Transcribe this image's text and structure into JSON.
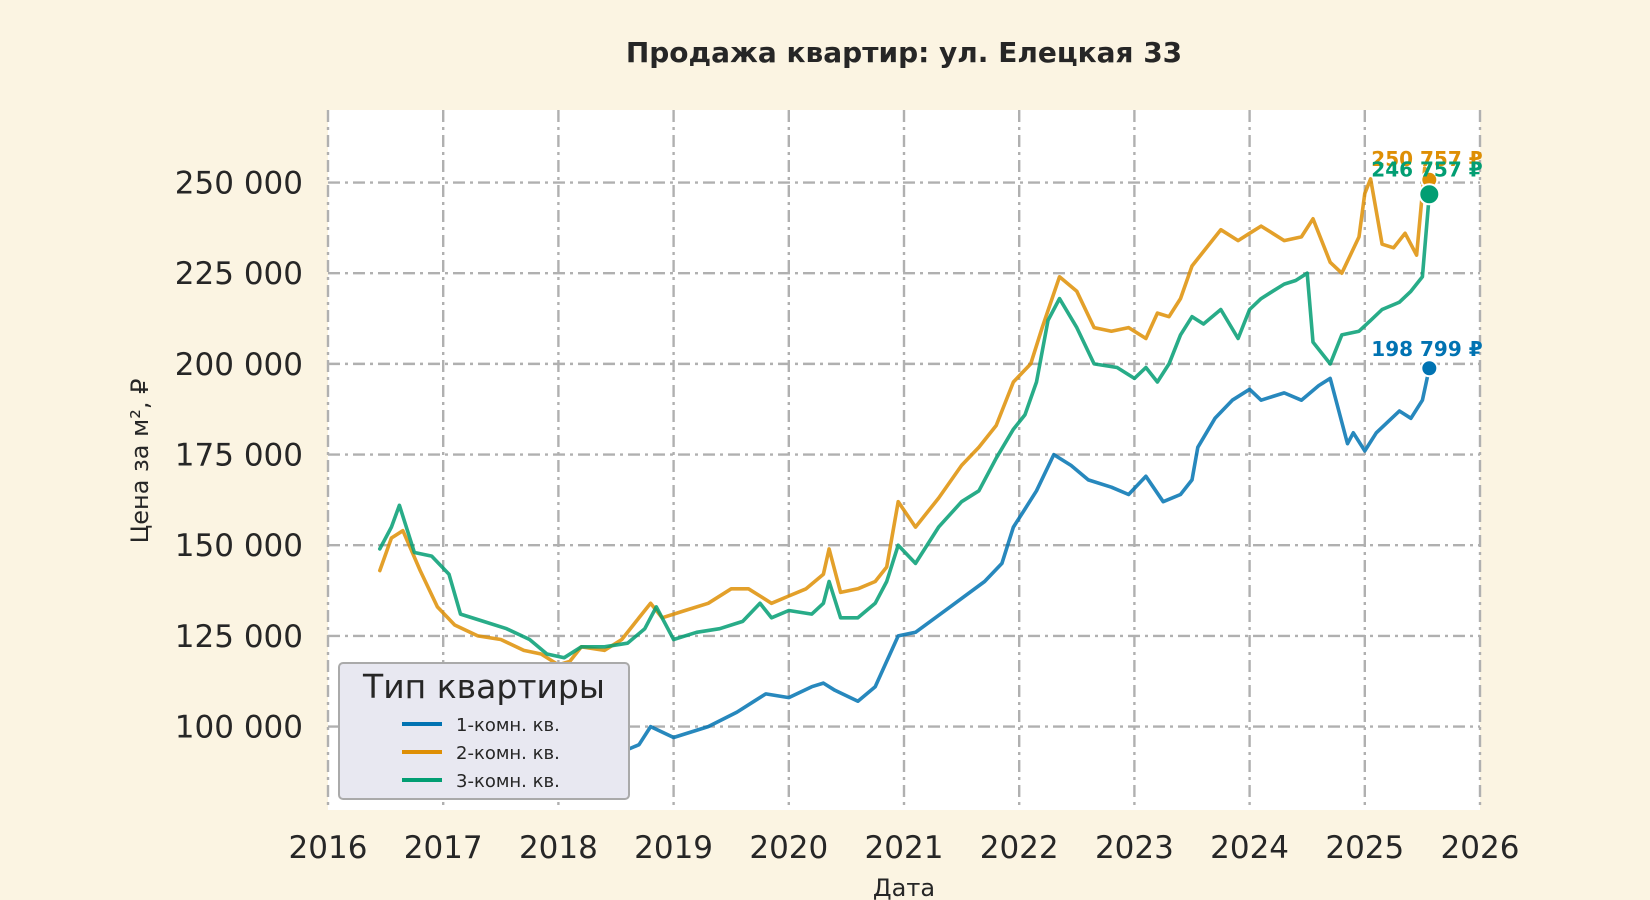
{
  "chart_data": {
    "type": "line",
    "title": "Продажа квартир: ул. Елецкая 33",
    "xlabel": "Дата",
    "ylabel": "Цена за м², ₽",
    "xlim": [
      2016.0,
      2026.0
    ],
    "ylim": [
      77000,
      270000
    ],
    "x_ticks": [
      "2016",
      "2017",
      "2018",
      "2019",
      "2020",
      "2021",
      "2022",
      "2023",
      "2024",
      "2025",
      "2026"
    ],
    "y_ticks": [
      "100 000",
      "125 000",
      "150 000",
      "175 000",
      "200 000",
      "225 000",
      "250 000"
    ],
    "y_tick_values": [
      100000,
      125000,
      150000,
      175000,
      200000,
      225000,
      250000
    ],
    "grid": true,
    "legend": {
      "title": "Тип квартиры",
      "position": "lower-left"
    },
    "series": [
      {
        "name": "1-комн. кв.",
        "color": "#0173b2",
        "x": [
          2016.7,
          2016.9,
          2017.1,
          2017.3,
          2017.6,
          2017.9,
          2018.05,
          2018.3,
          2018.55,
          2018.7,
          2018.8,
          2019.0,
          2019.3,
          2019.55,
          2019.7,
          2019.8,
          2020.0,
          2020.2,
          2020.3,
          2020.4,
          2020.6,
          2020.75,
          2020.85,
          2020.95,
          2021.1,
          2021.4,
          2021.7,
          2021.85,
          2021.95,
          2022.05,
          2022.15,
          2022.3,
          2022.45,
          2022.6,
          2022.8,
          2022.95,
          2023.1,
          2023.25,
          2023.4,
          2023.5,
          2023.55,
          2023.7,
          2023.85,
          2024.0,
          2024.1,
          2024.2,
          2024.3,
          2024.45,
          2024.6,
          2024.7,
          2024.85,
          2024.9,
          2025.0,
          2025.1,
          2025.2,
          2025.3,
          2025.4,
          2025.5,
          2025.56
        ],
        "y": [
          100000,
          98000,
          96000,
          94000,
          93000,
          90000,
          88000,
          90000,
          93000,
          95000,
          100000,
          97000,
          100000,
          104000,
          107000,
          109000,
          108000,
          111000,
          112000,
          110000,
          107000,
          111000,
          118000,
          125000,
          126000,
          133000,
          140000,
          145000,
          155000,
          160000,
          165000,
          175000,
          172000,
          168000,
          166000,
          164000,
          169000,
          162000,
          164000,
          168000,
          177000,
          185000,
          190000,
          193000,
          190000,
          191000,
          192000,
          190000,
          194000,
          196000,
          178000,
          181000,
          176000,
          181000,
          184000,
          187000,
          185000,
          190000,
          198799
        ]
      },
      {
        "name": "2-комн. кв.",
        "color": "#de8f05",
        "x": [
          2016.45,
          2016.55,
          2016.65,
          2016.8,
          2016.95,
          2017.1,
          2017.3,
          2017.5,
          2017.7,
          2017.85,
          2018.0,
          2018.1,
          2018.2,
          2018.4,
          2018.55,
          2018.7,
          2018.8,
          2018.9,
          2019.1,
          2019.3,
          2019.5,
          2019.65,
          2019.75,
          2019.85,
          2020.0,
          2020.15,
          2020.3,
          2020.35,
          2020.45,
          2020.6,
          2020.75,
          2020.85,
          2020.95,
          2021.1,
          2021.3,
          2021.5,
          2021.65,
          2021.8,
          2021.95,
          2022.1,
          2022.2,
          2022.35,
          2022.5,
          2022.65,
          2022.8,
          2022.95,
          2023.1,
          2023.2,
          2023.3,
          2023.4,
          2023.5,
          2023.6,
          2023.75,
          2023.9,
          2024.0,
          2024.1,
          2024.2,
          2024.3,
          2024.45,
          2024.55,
          2024.7,
          2024.8,
          2024.95,
          2025.0,
          2025.05,
          2025.15,
          2025.25,
          2025.35,
          2025.45,
          2025.52,
          2025.56
        ],
        "y": [
          143000,
          152000,
          154000,
          143000,
          133000,
          128000,
          125000,
          124000,
          121000,
          120000,
          117000,
          118000,
          122000,
          121000,
          124000,
          130000,
          134000,
          130000,
          132000,
          134000,
          138000,
          138000,
          136000,
          134000,
          136000,
          138000,
          142000,
          149000,
          137000,
          138000,
          140000,
          144000,
          162000,
          155000,
          163000,
          172000,
          177000,
          183000,
          195000,
          200000,
          210000,
          224000,
          220000,
          210000,
          209000,
          210000,
          207000,
          214000,
          213000,
          218000,
          227000,
          231000,
          237000,
          234000,
          236000,
          238000,
          236000,
          234000,
          235000,
          240000,
          228000,
          225000,
          235000,
          247000,
          251000,
          233000,
          232000,
          236000,
          230000,
          254000,
          250757
        ]
      },
      {
        "name": "3-комн. кв.",
        "color": "#029e73",
        "x": [
          2016.45,
          2016.55,
          2016.62,
          2016.75,
          2016.9,
          2017.05,
          2017.15,
          2017.35,
          2017.55,
          2017.75,
          2017.9,
          2018.05,
          2018.2,
          2018.4,
          2018.6,
          2018.75,
          2018.85,
          2019.0,
          2019.2,
          2019.4,
          2019.6,
          2019.75,
          2019.85,
          2020.0,
          2020.2,
          2020.3,
          2020.35,
          2020.45,
          2020.6,
          2020.75,
          2020.85,
          2020.95,
          2021.1,
          2021.3,
          2021.5,
          2021.65,
          2021.8,
          2021.95,
          2022.05,
          2022.15,
          2022.25,
          2022.35,
          2022.5,
          2022.65,
          2022.85,
          2023.0,
          2023.1,
          2023.2,
          2023.3,
          2023.4,
          2023.5,
          2023.6,
          2023.75,
          2023.9,
          2024.0,
          2024.1,
          2024.2,
          2024.3,
          2024.4,
          2024.5,
          2024.55,
          2024.7,
          2024.8,
          2024.95,
          2025.05,
          2025.15,
          2025.3,
          2025.4,
          2025.5,
          2025.56
        ],
        "y": [
          149000,
          155000,
          161000,
          148000,
          147000,
          142000,
          131000,
          129000,
          127000,
          124000,
          120000,
          119000,
          122000,
          122000,
          123000,
          127000,
          133000,
          124000,
          126000,
          127000,
          129000,
          134000,
          130000,
          132000,
          131000,
          134000,
          140000,
          130000,
          130000,
          134000,
          140000,
          150000,
          145000,
          155000,
          162000,
          165000,
          174000,
          182000,
          186000,
          195000,
          212000,
          218000,
          210000,
          200000,
          199000,
          196000,
          199000,
          195000,
          200000,
          208000,
          213000,
          211000,
          215000,
          207000,
          215000,
          218000,
          220000,
          222000,
          223000,
          225000,
          206000,
          200000,
          208000,
          209000,
          212000,
          215000,
          217000,
          220000,
          224000,
          246757
        ]
      }
    ],
    "annotations": [
      {
        "text": "250 757 ₽",
        "series": 1,
        "x": 2025.56,
        "y": 250757
      },
      {
        "text": "246 757 ₽",
        "series": 2,
        "x": 2025.56,
        "y": 246757
      },
      {
        "text": "198 799 ₽",
        "series": 0,
        "x": 2025.56,
        "y": 198799
      }
    ]
  }
}
